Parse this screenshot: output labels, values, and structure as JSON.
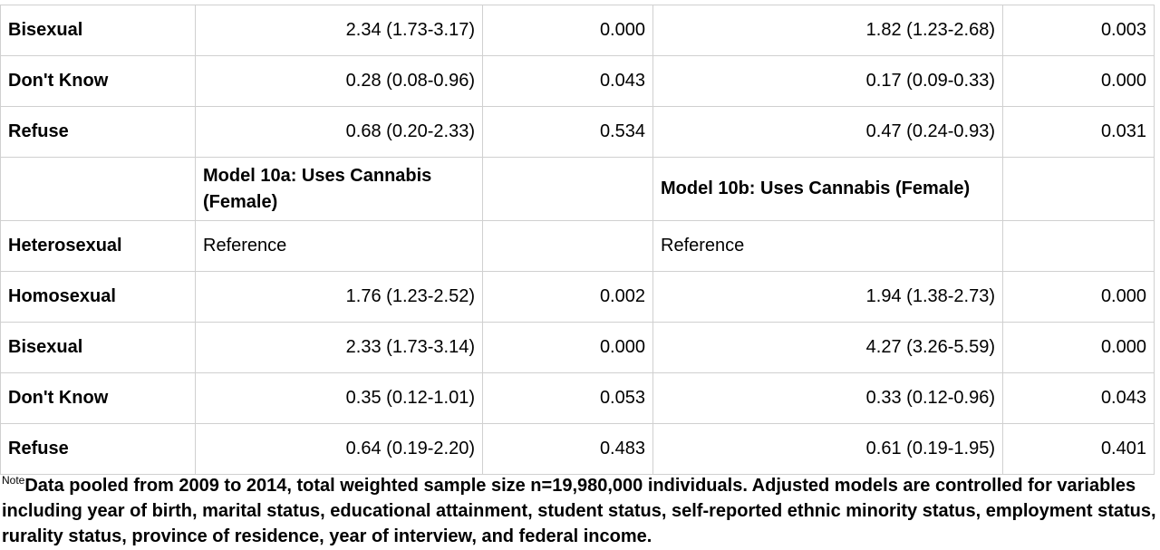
{
  "table": {
    "rows": [
      [
        "Bisexual",
        "2.34 (1.73-3.17)",
        "0.000",
        "1.82 (1.23-2.68)",
        "0.003"
      ],
      [
        "Don't Know",
        "0.28 (0.08-0.96)",
        "0.043",
        "0.17 (0.09-0.33)",
        "0.000"
      ],
      [
        "Refuse",
        "0.68 (0.20-2.33)",
        "0.534",
        "0.47 (0.24-0.93)",
        "0.031"
      ],
      [
        null,
        "Model 10a: Uses Cannabis (Female)",
        null,
        "Model 10b: Uses Cannabis (Female)",
        null
      ],
      [
        "Heterosexual",
        "Reference",
        null,
        "Reference",
        null
      ],
      [
        "Homosexual",
        "1.76 (1.23-2.52)",
        "0.002",
        "1.94 (1.38-2.73)",
        "0.000"
      ],
      [
        "Bisexual",
        "2.33 (1.73-3.14)",
        "0.000",
        "4.27 (3.26-5.59)",
        "0.000"
      ],
      [
        "Don't Know",
        "0.35 (0.12-1.01)",
        "0.053",
        "0.33 (0.12-0.96)",
        "0.043"
      ],
      [
        "Refuse",
        "0.64 (0.19-2.20)",
        "0.483",
        "0.61 (0.19-1.95)",
        "0.401"
      ]
    ]
  },
  "note": {
    "label": "Note",
    "text": "Data pooled from 2009 to 2014, total weighted sample size n=19,980,000 individuals. Adjusted models are controlled for variables including year of birth, marital status, educational attainment, student status, self-reported ethnic minority status, employment status, rurality status, province of residence, year of interview, and federal income."
  }
}
